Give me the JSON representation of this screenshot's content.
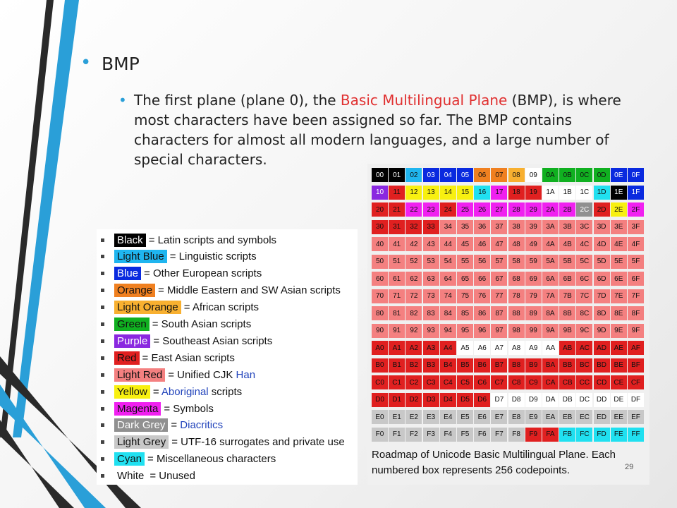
{
  "slide": {
    "heading": "BMP",
    "body_prefix": "The first plane (plane 0), the ",
    "body_highlight": "Basic Multilingual Plane",
    "body_suffix": " (BMP), is where most characters have been assigned so far. The BMP contains characters for almost all modern languages, and a large number of special characters.",
    "page_number": "29"
  },
  "colors": {
    "accent_blue": "#2a9fd8",
    "highlight_red": "#e03030"
  },
  "legend": [
    {
      "swatch": "Black",
      "bg": "#000000",
      "fg": "#ffffff",
      "rest": "= Latin scripts and symbols",
      "link": "",
      "after": ""
    },
    {
      "swatch": "Light Blue",
      "bg": "#1fb5ef",
      "fg": "#111111",
      "rest": "= Linguistic scripts",
      "link": "",
      "after": ""
    },
    {
      "swatch": "Blue",
      "bg": "#0a2adf",
      "fg": "#ffffff",
      "rest": "= Other European scripts",
      "link": "",
      "after": ""
    },
    {
      "swatch": "Orange",
      "bg": "#f08020",
      "fg": "#111111",
      "rest": "= Middle Eastern and SW Asian scripts",
      "link": "",
      "after": ""
    },
    {
      "swatch": "Light Orange",
      "bg": "#f8b030",
      "fg": "#111111",
      "rest": "= African scripts",
      "link": "",
      "after": ""
    },
    {
      "swatch": "Green",
      "bg": "#10b020",
      "fg": "#111111",
      "rest": "= South Asian scripts",
      "link": "",
      "after": ""
    },
    {
      "swatch": "Purple",
      "bg": "#8a28e0",
      "fg": "#ffffff",
      "rest": "= Southeast Asian scripts",
      "link": "",
      "after": ""
    },
    {
      "swatch": "Red",
      "bg": "#e02020",
      "fg": "#111111",
      "rest": "= East Asian scripts",
      "link": "",
      "after": ""
    },
    {
      "swatch": "Light Red",
      "bg": "#f48080",
      "fg": "#111111",
      "rest": "= Unified CJK ",
      "link": "Han",
      "after": ""
    },
    {
      "swatch": "Yellow",
      "bg": "#f8f010",
      "fg": "#111111",
      "rest": "= ",
      "link": "Aboriginal",
      "after": " scripts"
    },
    {
      "swatch": "Magenta",
      "bg": "#f020f0",
      "fg": "#111111",
      "rest": "= Symbols",
      "link": "",
      "after": ""
    },
    {
      "swatch": "Dark Grey",
      "bg": "#909090",
      "fg": "#ffffff",
      "rest": "= ",
      "link": "Diacritics",
      "after": ""
    },
    {
      "swatch": "Light Grey",
      "bg": "#c8c8c8",
      "fg": "#111111",
      "rest": "= UTF-16 surrogates and private use",
      "link": "",
      "after": ""
    },
    {
      "swatch": "Cyan",
      "bg": "#20e0f0",
      "fg": "#111111",
      "rest": "= Miscellaneous characters",
      "link": "",
      "after": ""
    },
    {
      "swatch": "White",
      "bg": "#ffffff",
      "fg": "#111111",
      "rest": "= Unused",
      "link": "",
      "after": ""
    }
  ],
  "roadmap": {
    "caption": "Roadmap of Unicode Basic Multilingual Plane. Each numbered box represents 256 codepoints.",
    "palette": {
      "K": "#000000",
      "b": "#1fb5ef",
      "B": "#0a2adf",
      "O": "#f08020",
      "o": "#f8b030",
      "G": "#10b020",
      "P": "#8a28e0",
      "R": "#e02020",
      "r": "#f48080",
      "Y": "#f8f010",
      "M": "#f020f0",
      "D": "#909090",
      "L": "#c8c8c8",
      "C": "#20e0f0",
      "W": "#ffffff"
    },
    "rows": [
      "KKbBBBOOoWGGGGBB",
      "PRYYYYCMRRWWWCKB",
      "RRMMRMMMMMMMDRYM",
      "RRRRrrrrrrrrrrrr",
      "rrrrrrrrrrrrrrrr",
      "rrrrrrrrrrrrrrrr",
      "rrrrrrrrrrrrrrrr",
      "rrrrrrrrrrrrrrrr",
      "rrrrrrrrrrrrrrrr",
      "rrrrrrrrrrrrrrrr",
      "RRRRRWWWWWWRRRRR",
      "RRRRRRRRRRRRRRRR",
      "RRRRRRRRRRRRRRRR",
      "RRRRRRRWWWWWWWWW",
      "LLLLLLLLLLLLLLLL",
      "LLLLLLLLLRRCCCCC"
    ]
  }
}
